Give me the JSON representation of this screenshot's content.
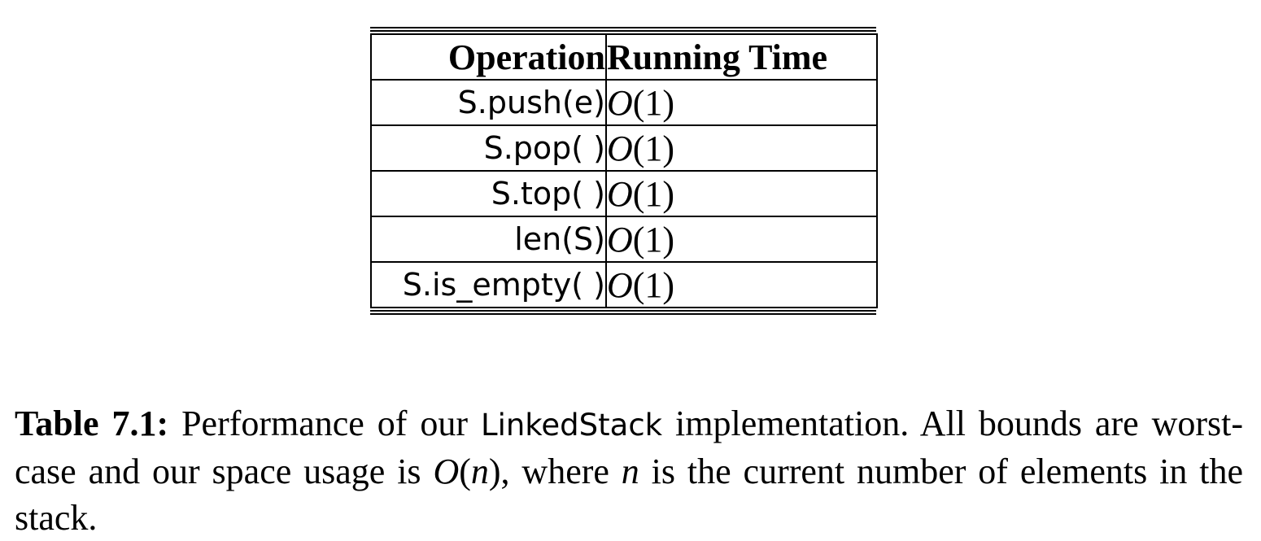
{
  "table": {
    "headers": {
      "operation": "Operation",
      "running_time": "Running Time"
    },
    "rows": [
      {
        "operation": "S.push(e)",
        "big_o": "O",
        "arg": "(1)"
      },
      {
        "operation": "S.pop( )",
        "big_o": "O",
        "arg": "(1)"
      },
      {
        "operation": "S.top( )",
        "big_o": "O",
        "arg": "(1)"
      },
      {
        "operation": "len(S)",
        "big_o": "O",
        "arg": "(1)"
      },
      {
        "operation": "S.is_empty( )",
        "big_o": "O",
        "arg": "(1)"
      }
    ]
  },
  "caption": {
    "label": "Table 7.1:",
    "text_1": " Performance of our ",
    "code": "LinkedStack",
    "text_2": " implementation. All bounds are worst-case and our space usage is ",
    "math_o": "O",
    "math_paren_open": "(",
    "math_n": "n",
    "math_paren_close": ")",
    "text_3": ", where ",
    "math_n2": "n",
    "text_4": " is the current number of elements in the stack."
  }
}
